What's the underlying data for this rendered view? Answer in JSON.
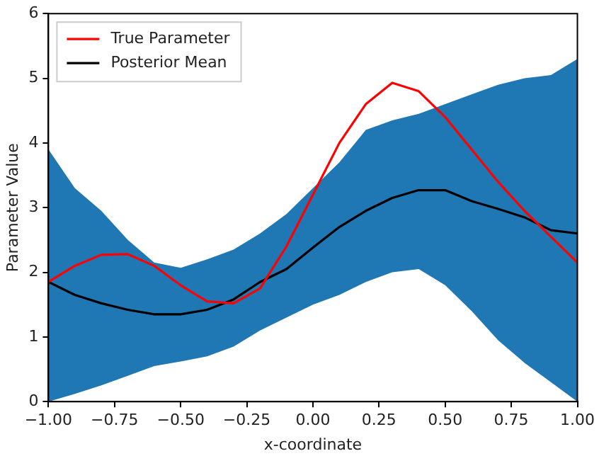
{
  "chart_data": {
    "type": "line",
    "xlabel": "x-coordinate",
    "ylabel": "Parameter Value",
    "x": [
      -1,
      -0.9,
      -0.8,
      -0.7,
      -0.6,
      -0.5,
      -0.4,
      -0.3,
      -0.2,
      -0.1,
      0,
      0.1,
      0.2,
      0.3,
      0.4,
      0.5,
      0.6,
      0.7,
      0.8,
      0.9,
      1
    ],
    "series": [
      {
        "name": "True Parameter",
        "color": "#ff0000",
        "values": [
          1.85,
          2.1,
          2.27,
          2.28,
          2.1,
          1.8,
          1.55,
          1.52,
          1.75,
          2.4,
          3.2,
          4.0,
          4.6,
          4.93,
          4.8,
          4.4,
          3.9,
          3.4,
          2.95,
          2.55,
          2.15
        ]
      },
      {
        "name": "Posterior Mean",
        "color": "#000000",
        "values": [
          1.85,
          1.65,
          1.52,
          1.42,
          1.35,
          1.35,
          1.42,
          1.58,
          1.85,
          2.05,
          2.38,
          2.7,
          2.95,
          3.15,
          3.27,
          3.27,
          3.1,
          2.98,
          2.85,
          2.65,
          2.6
        ],
        "lower": [
          0,
          0.12,
          0.25,
          0.4,
          0.55,
          0.62,
          0.7,
          0.85,
          1.1,
          1.3,
          1.5,
          1.65,
          1.85,
          2.0,
          2.05,
          1.8,
          1.4,
          0.95,
          0.6,
          0.3,
          0
        ],
        "upper": [
          3.9,
          3.3,
          2.95,
          2.5,
          2.15,
          2.07,
          2.2,
          2.35,
          2.6,
          2.9,
          3.3,
          3.7,
          4.2,
          4.35,
          4.45,
          4.6,
          4.75,
          4.9,
          5.0,
          5.05,
          5.3
        ]
      }
    ],
    "xlim": [
      -1,
      1
    ],
    "xticks": [
      {
        "value": -1,
        "label": "−1.00"
      },
      {
        "value": -0.75,
        "label": "−0.75"
      },
      {
        "value": -0.5,
        "label": "−0.50"
      },
      {
        "value": -0.25,
        "label": "−0.25"
      },
      {
        "value": 0,
        "label": "0.00"
      },
      {
        "value": 0.25,
        "label": "0.25"
      },
      {
        "value": 0.5,
        "label": "0.50"
      },
      {
        "value": 0.75,
        "label": "0.75"
      },
      {
        "value": 1,
        "label": "1.00"
      }
    ],
    "ylim": [
      0,
      6
    ],
    "yticks": [
      0,
      1,
      2,
      3,
      4,
      5,
      6
    ],
    "grid": false,
    "legend": "top left",
    "marker": "none",
    "line_style": "solid"
  }
}
